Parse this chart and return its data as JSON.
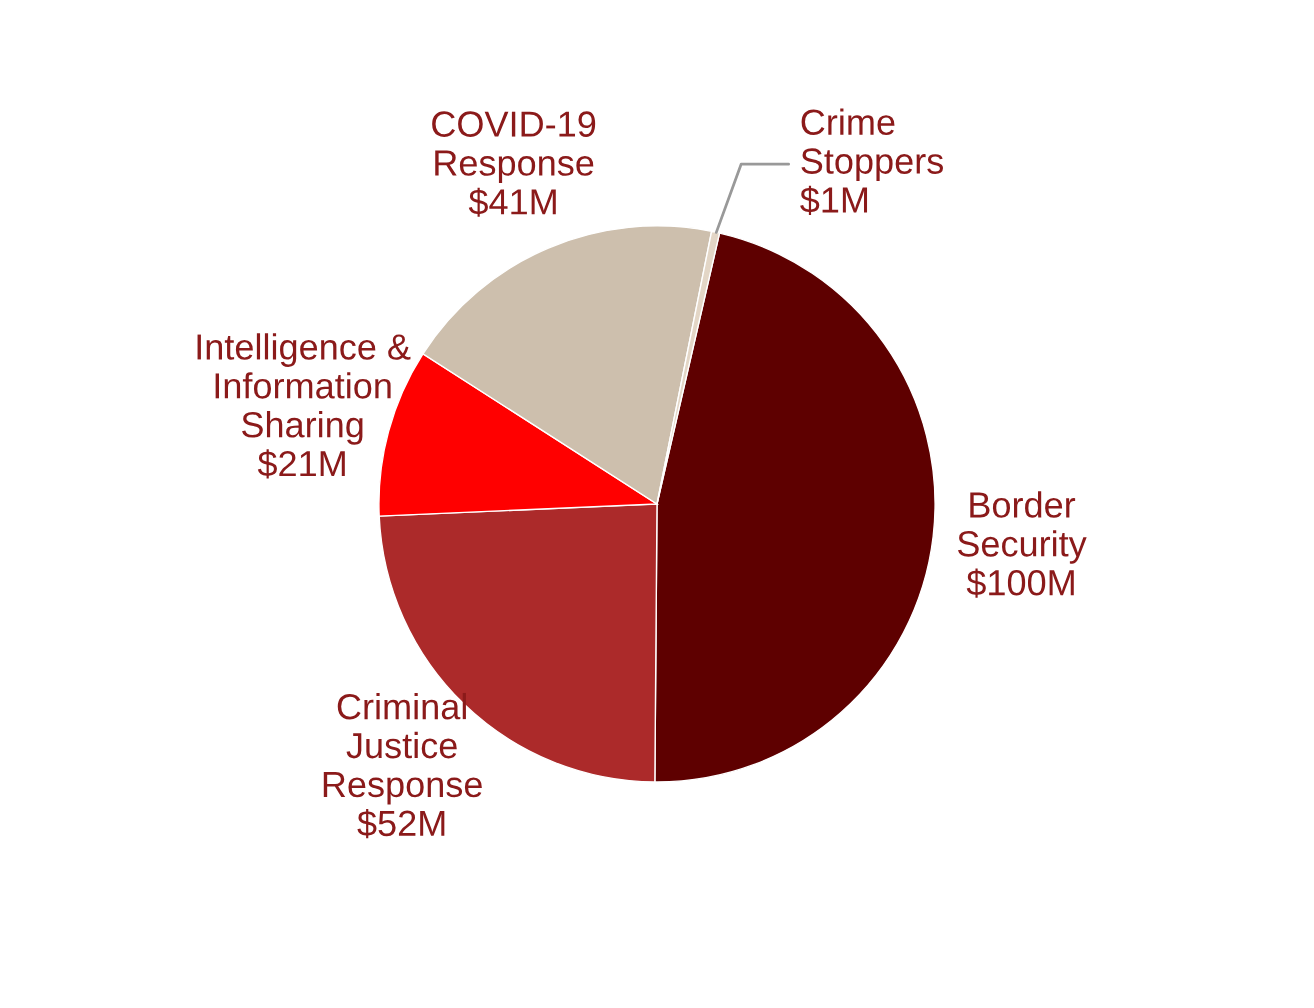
{
  "chart_data": {
    "type": "pie",
    "categories": [
      "Border\nSecurity",
      "Criminal\nJustice\nResponse",
      "Intelligence &\nInformation\nSharing",
      "COVID-19\nResponse",
      "Crime\nStoppers"
    ],
    "values": [
      100,
      52,
      21,
      41,
      1
    ],
    "colors": [
      "#5e0000",
      "#ac2a2a",
      "#ff0000",
      "#cdbfad",
      "#e3d6c6"
    ],
    "value_labels": [
      "$100M",
      "$52M",
      "$21M",
      "$41M",
      "$1M"
    ]
  }
}
